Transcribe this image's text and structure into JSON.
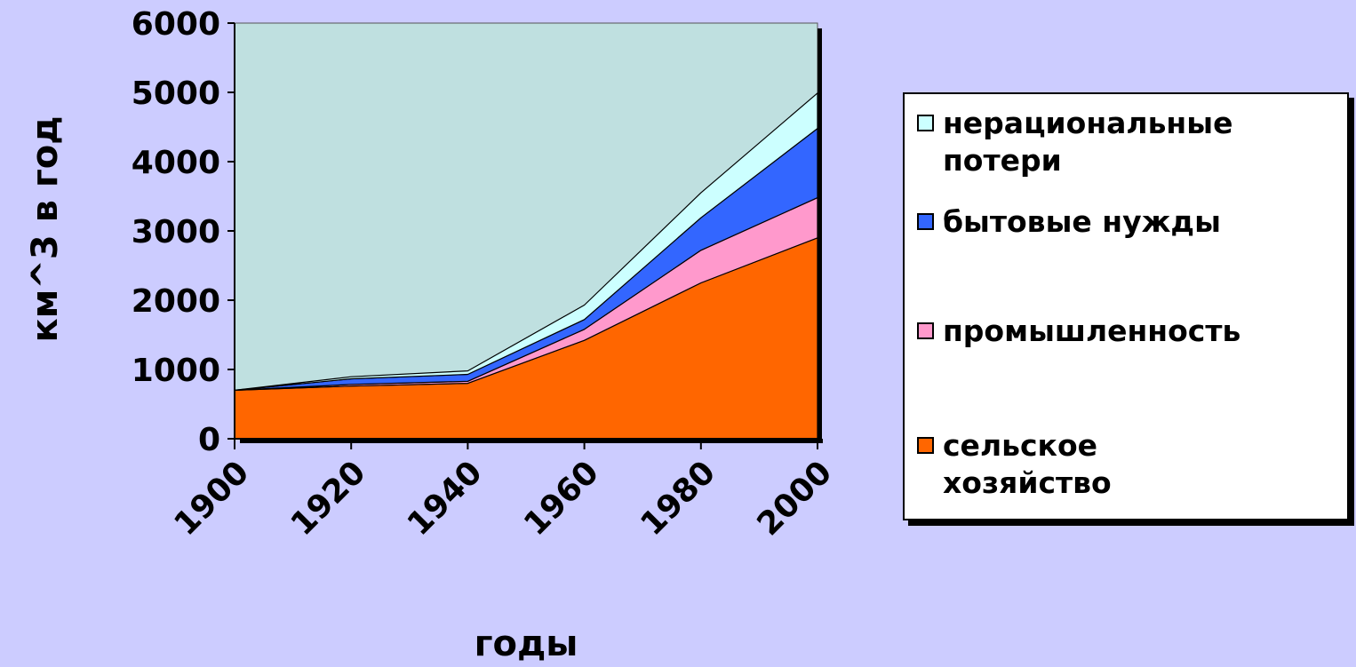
{
  "chart_data": {
    "type": "area",
    "stacked": true,
    "x": [
      1900,
      1920,
      1940,
      1960,
      1980,
      2000
    ],
    "xlabel": "годы",
    "ylabel": "км^3 в год",
    "ylim": [
      0,
      6000
    ],
    "yticks": [
      0,
      1000,
      2000,
      3000,
      4000,
      5000,
      6000
    ],
    "grid": false,
    "legend_position": "right",
    "series": [
      {
        "key": "agri",
        "name": "сельское хозяйство",
        "color": "#ff6600",
        "values": [
          700,
          760,
          800,
          1420,
          2250,
          2900
        ]
      },
      {
        "key": "ind",
        "name": "промышленность",
        "color": "#ff99cc",
        "values": [
          0,
          25,
          30,
          160,
          470,
          580
        ]
      },
      {
        "key": "dom",
        "name": "бытовые нужды",
        "color": "#3366ff",
        "values": [
          0,
          80,
          100,
          140,
          470,
          1000
        ]
      },
      {
        "key": "loss",
        "name": "нерациональные потери",
        "color": "#ccffff",
        "values": [
          0,
          30,
          50,
          210,
          360,
          510
        ]
      }
    ]
  },
  "colors": {
    "background": "#ccccff",
    "plot_area": "#bfe0e0"
  },
  "legend": {
    "items": [
      {
        "label": "нерациональные\nпотери",
        "color": "#ccffff"
      },
      {
        "label": "бытовые нужды",
        "color": "#3366ff"
      },
      {
        "label": "промышленность",
        "color": "#ff99cc"
      },
      {
        "label": "сельское\nхозяйство",
        "color": "#ff6600"
      }
    ]
  }
}
